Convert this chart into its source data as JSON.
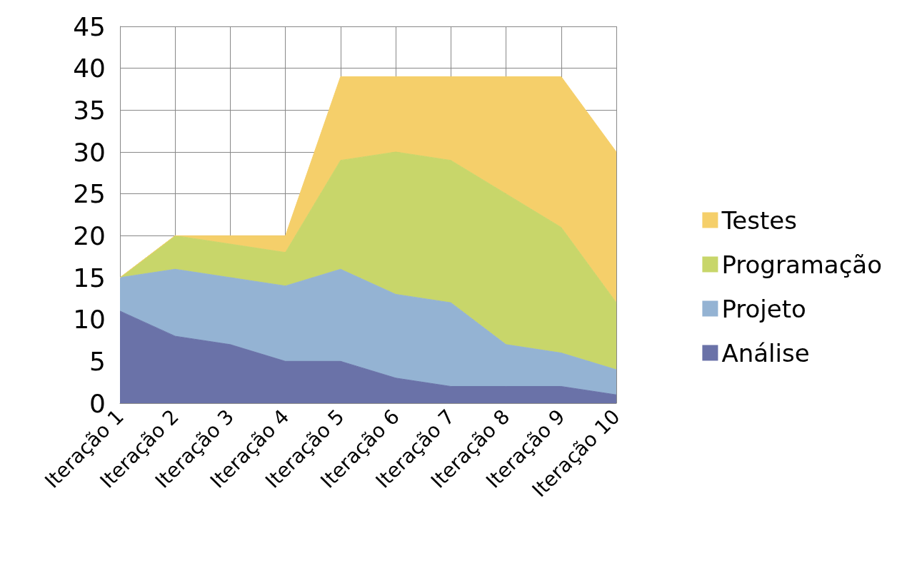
{
  "chart_data": {
    "type": "area",
    "stacked": true,
    "categories": [
      "Iteração 1",
      "Iteração 2",
      "Iteração 3",
      "Iteração 4",
      "Iteração 5",
      "Iteração 6",
      "Iteração 7",
      "Iteração 8",
      "Iteração 9",
      "Iteração 10"
    ],
    "series": [
      {
        "name": "Análise",
        "color": "#6a72a8",
        "values": [
          11,
          8,
          7,
          5,
          5,
          3,
          2,
          2,
          2,
          1
        ]
      },
      {
        "name": "Projeto",
        "color": "#94b3d3",
        "values": [
          4,
          8,
          8,
          9,
          11,
          10,
          10,
          5,
          4,
          3
        ]
      },
      {
        "name": "Programação",
        "color": "#c8d66a",
        "values": [
          0,
          4,
          4,
          4,
          13,
          17,
          17,
          18,
          15,
          8
        ]
      },
      {
        "name": "Testes",
        "color": "#f5cf6a",
        "values": [
          0,
          0,
          1,
          2,
          10,
          9,
          10,
          14,
          18,
          18
        ]
      }
    ],
    "ylim": [
      0,
      45
    ],
    "yticks": [
      0,
      5,
      10,
      15,
      20,
      25,
      30,
      35,
      40,
      45
    ],
    "grid": true,
    "legend": "right"
  }
}
